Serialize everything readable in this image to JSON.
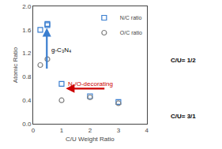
{
  "chart_data": {
    "type": "scatter",
    "x_label": "C/U Weight Ratio",
    "y_label": "Atomic Ratio",
    "series": [
      {
        "name": "N/C ratio",
        "color": "#3a7ecf",
        "marker": "square-open",
        "x": [
          0.25,
          0.5,
          0.5,
          1.0,
          2.0,
          3.0
        ],
        "values": [
          1.6,
          1.7,
          1.68,
          0.68,
          0.47,
          0.37
        ]
      },
      {
        "name": "O/C ratio",
        "color": "gray",
        "marker": "circle-open",
        "x": [
          0.25,
          0.5,
          1.0,
          2.0,
          3.0
        ],
        "values": [
          1.0,
          1.1,
          0.4,
          0.45,
          0.35
        ]
      }
    ],
    "xlim": [
      0,
      4
    ],
    "ylim": [
      0,
      2.0
    ],
    "xticks": [
      0,
      1,
      2,
      3,
      4
    ],
    "yticks": [
      {
        "value": 0,
        "label": "0.0"
      },
      0.4,
      0.8,
      1.2,
      1.6,
      {
        "value": 2.0,
        "label": "2.0"
      }
    ],
    "legend": "upper right",
    "grid": false,
    "annotations": [
      {
        "text": "g-C₃N₄",
        "x": 0.58,
        "y": 1.25,
        "color": "black"
      },
      {
        "text": "N-/O-decorating",
        "x": 1.18,
        "y": 0.68,
        "color": "#cc0000"
      }
    ],
    "arrows": [
      {
        "from": [
          0.48,
          0.92
        ],
        "to": [
          0.48,
          1.63
        ],
        "color": "#3a7ecf"
      },
      {
        "from": [
          2.55,
          0.6
        ],
        "to": [
          1.15,
          0.6
        ],
        "color": "#cc0000"
      }
    ],
    "panel_labels": [
      "C/U= 1/2",
      "C/U= 3/1"
    ]
  }
}
